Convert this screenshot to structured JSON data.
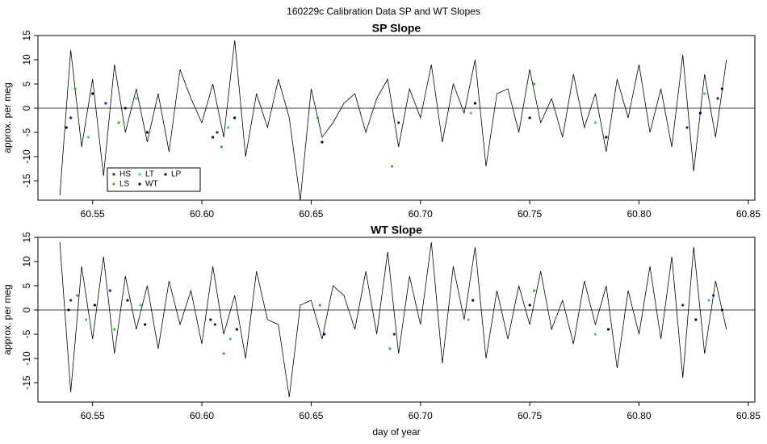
{
  "title": "160229c   Calibration Data SP and WT Slopes",
  "chart_data": [
    {
      "type": "line",
      "title": "SP Slope",
      "ylabel": "approx. per meg",
      "xlim": [
        60.525,
        60.853
      ],
      "ylim": [
        -19,
        15
      ],
      "xticks": [
        60.55,
        {
          "value": 60.6,
          "label": "60.60"
        },
        60.65,
        {
          "value": 60.7,
          "label": "60.70"
        },
        60.75,
        {
          "value": 60.8,
          "label": "60.80"
        },
        60.85
      ],
      "yticks": [
        -15,
        -10,
        -5,
        0,
        5,
        10,
        15
      ],
      "hline": 0,
      "legend": true,
      "legend_position": "bottom-left",
      "line": {
        "color": "#000000",
        "x": [
          60.535,
          60.54,
          60.545,
          60.55,
          60.555,
          60.56,
          60.565,
          60.57,
          60.575,
          60.58,
          60.585,
          60.59,
          60.595,
          60.6,
          60.605,
          60.61,
          60.615,
          60.62,
          60.625,
          60.63,
          60.635,
          60.64,
          60.645,
          60.65,
          60.655,
          60.66,
          60.665,
          60.67,
          60.675,
          60.68,
          60.685,
          60.69,
          60.695,
          60.7,
          60.705,
          60.71,
          60.715,
          60.72,
          60.725,
          60.73,
          60.735,
          60.74,
          60.745,
          60.75,
          60.755,
          60.76,
          60.765,
          60.77,
          60.775,
          60.78,
          60.785,
          60.79,
          60.795,
          60.8,
          60.805,
          60.81,
          60.815,
          60.82,
          60.825,
          60.83,
          60.835,
          60.84
        ],
        "values": [
          -18,
          12,
          -8,
          6,
          -14,
          9,
          -5,
          4,
          -7,
          3,
          -9,
          8,
          2,
          -3,
          5,
          -6,
          14,
          -10,
          3,
          -4,
          6,
          -2,
          -19,
          4,
          -6,
          -3,
          1,
          3,
          -5,
          2,
          6,
          -8,
          4,
          -2,
          9,
          -7,
          5,
          -1,
          10,
          -12,
          3,
          4,
          -5,
          8,
          -3,
          2,
          -6,
          7,
          -4,
          3,
          -9,
          6,
          -2,
          9,
          -5,
          4,
          -8,
          11,
          -13,
          7,
          -6,
          10
        ]
      },
      "series": [
        {
          "name": "HS",
          "color": "#1a1acc",
          "x": [
            60.54,
            60.556,
            60.607,
            60.69,
            60.822,
            60.836
          ],
          "values": [
            -2,
            1,
            -5,
            -3,
            -4,
            2
          ]
        },
        {
          "name": "LS",
          "color": "#22bb22",
          "x": [
            60.542,
            60.562,
            60.609,
            60.653,
            60.687,
            60.752
          ],
          "values": [
            4,
            -3,
            -8,
            -2,
            -12,
            5
          ]
        },
        {
          "name": "LT",
          "color": "#22cccc",
          "x": [
            60.548,
            60.57,
            60.612,
            60.723,
            60.78,
            60.83
          ],
          "values": [
            -6,
            2,
            -4,
            -1,
            -3,
            3
          ]
        },
        {
          "name": "WT",
          "color": "#000000",
          "x": [
            60.55,
            60.575,
            60.615,
            60.725,
            60.785,
            60.838
          ],
          "values": [
            3,
            -5,
            -2,
            1,
            -6,
            4
          ]
        },
        {
          "name": "LP",
          "color": "#000066",
          "x": [
            60.538,
            60.565,
            60.605,
            60.655,
            60.75,
            60.828
          ],
          "values": [
            -4,
            0,
            -6,
            -7,
            -2,
            -1
          ]
        }
      ]
    },
    {
      "type": "line",
      "title": "WT Slope",
      "ylabel": "approx. per meg",
      "xlabel": "day of year",
      "xlim": [
        60.525,
        60.853
      ],
      "ylim": [
        -19,
        15
      ],
      "xticks": [
        60.55,
        {
          "value": 60.6,
          "label": "60.60"
        },
        60.65,
        {
          "value": 60.7,
          "label": "60.70"
        },
        60.75,
        {
          "value": 60.8,
          "label": "60.80"
        },
        60.85
      ],
      "yticks": [
        -15,
        -10,
        -5,
        0,
        5,
        10,
        15
      ],
      "hline": 0,
      "legend": false,
      "line": {
        "color": "#000000",
        "x": [
          60.535,
          60.54,
          60.545,
          60.55,
          60.555,
          60.56,
          60.565,
          60.57,
          60.575,
          60.58,
          60.585,
          60.59,
          60.595,
          60.6,
          60.605,
          60.61,
          60.615,
          60.62,
          60.625,
          60.63,
          60.635,
          60.64,
          60.645,
          60.65,
          60.655,
          60.66,
          60.665,
          60.67,
          60.675,
          60.68,
          60.685,
          60.69,
          60.695,
          60.7,
          60.705,
          60.71,
          60.715,
          60.72,
          60.725,
          60.73,
          60.735,
          60.74,
          60.745,
          60.75,
          60.755,
          60.76,
          60.765,
          60.77,
          60.775,
          60.78,
          60.785,
          60.79,
          60.795,
          60.8,
          60.805,
          60.81,
          60.815,
          60.82,
          60.825,
          60.83,
          60.835,
          60.84
        ],
        "values": [
          14,
          -17,
          9,
          -6,
          11,
          -9,
          7,
          -4,
          5,
          -8,
          6,
          -3,
          4,
          -7,
          9,
          -5,
          3,
          -10,
          8,
          -2,
          -3,
          -18,
          1,
          2,
          -6,
          5,
          3,
          -4,
          8,
          -5,
          12,
          -9,
          7,
          -3,
          14,
          -11,
          9,
          -2,
          13,
          -10,
          4,
          -6,
          5,
          -3,
          8,
          -4,
          2,
          -7,
          6,
          -3,
          5,
          -12,
          4,
          -5,
          9,
          -6,
          11,
          -14,
          13,
          -9,
          6,
          -4
        ]
      },
      "series": [
        {
          "name": "HS",
          "color": "#1a1acc",
          "x": [
            60.54,
            60.558,
            60.606,
            60.688,
            60.82,
            60.834
          ],
          "values": [
            2,
            4,
            -3,
            -5,
            1,
            3
          ]
        },
        {
          "name": "LS",
          "color": "#22bb22",
          "x": [
            60.543,
            60.56,
            60.61,
            60.654,
            60.686,
            60.752
          ],
          "values": [
            3,
            -4,
            -9,
            1,
            -8,
            4
          ]
        },
        {
          "name": "LT",
          "color": "#22cccc",
          "x": [
            60.547,
            60.572,
            60.613,
            60.722,
            60.78,
            60.832
          ],
          "values": [
            -2,
            1,
            -6,
            -2,
            -5,
            2
          ]
        },
        {
          "name": "WT",
          "color": "#000000",
          "x": [
            60.551,
            60.574,
            60.616,
            60.724,
            60.786,
            60.838
          ],
          "values": [
            1,
            -3,
            -4,
            2,
            -4,
            0
          ]
        },
        {
          "name": "LP",
          "color": "#000066",
          "x": [
            60.539,
            60.566,
            60.604,
            60.656,
            60.75,
            60.826
          ],
          "values": [
            0,
            2,
            -2,
            -5,
            1,
            -2
          ]
        }
      ]
    }
  ]
}
